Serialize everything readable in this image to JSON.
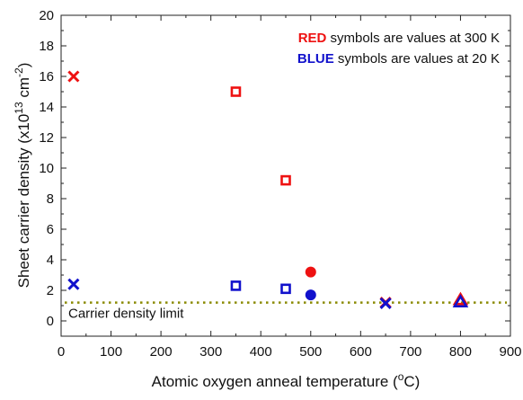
{
  "chart_data": {
    "type": "scatter",
    "xlabel": "Atomic oxygen anneal temperature (°C)",
    "xlabel_parts": {
      "main": "Atomic oxygen anneal temperature (",
      "sup": "o",
      "tail": "C)"
    },
    "ylabel_parts": {
      "main": "Sheet carrier density (x10",
      "sup1": "13",
      "mid": " cm",
      "sup2": "-2",
      "tail": ")"
    },
    "xlim": [
      0,
      900
    ],
    "ylim": [
      -1,
      20
    ],
    "x_ticks": [
      0,
      100,
      200,
      300,
      400,
      500,
      600,
      700,
      800,
      900
    ],
    "y_ticks": [
      0,
      2,
      4,
      6,
      8,
      10,
      12,
      14,
      16,
      18,
      20
    ],
    "grid": false,
    "colors": {
      "red": "#ee1111",
      "blue": "#1111cc",
      "limit": "#8a8a00"
    },
    "legend": {
      "placement": "top-right",
      "entries": [
        {
          "keyword": "RED",
          "rest": " symbols are values at 300 K",
          "color": "red"
        },
        {
          "keyword": "BLUE",
          "rest": " symbols are values at 20 K",
          "color": "blue"
        }
      ]
    },
    "reference_line": {
      "y": 1.2,
      "label": "Carrier density limit",
      "style": "dotted",
      "color": "limit"
    },
    "series": [
      {
        "color": "red",
        "points": [
          {
            "x": 25,
            "y": 16.0,
            "marker": "x"
          },
          {
            "x": 350,
            "y": 15.0,
            "marker": "square"
          },
          {
            "x": 450,
            "y": 9.2,
            "marker": "square"
          },
          {
            "x": 500,
            "y": 3.2,
            "marker": "circle"
          },
          {
            "x": 650,
            "y": 1.2,
            "marker": "x"
          },
          {
            "x": 800,
            "y": 1.4,
            "marker": "triangle"
          }
        ]
      },
      {
        "color": "blue",
        "points": [
          {
            "x": 25,
            "y": 2.4,
            "marker": "x"
          },
          {
            "x": 350,
            "y": 2.3,
            "marker": "square"
          },
          {
            "x": 450,
            "y": 2.1,
            "marker": "square"
          },
          {
            "x": 500,
            "y": 1.7,
            "marker": "circle"
          },
          {
            "x": 650,
            "y": 1.15,
            "marker": "x"
          },
          {
            "x": 800,
            "y": 1.25,
            "marker": "triangle"
          }
        ]
      }
    ]
  }
}
